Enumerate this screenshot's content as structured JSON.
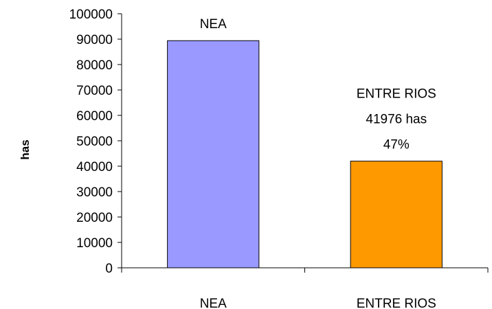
{
  "chart_data": {
    "type": "bar",
    "title": "",
    "xlabel": "",
    "ylabel": "has",
    "ylim": [
      0,
      100000
    ],
    "yticks": [
      0,
      10000,
      20000,
      30000,
      40000,
      50000,
      60000,
      70000,
      80000,
      90000,
      100000
    ],
    "categories": [
      "NEA",
      "ENTRE RIOS"
    ],
    "values": [
      89400,
      41976
    ],
    "colors": [
      "#9999ff",
      "#ff9900"
    ],
    "data_labels": [
      [
        "NEA"
      ],
      [
        "ENTRE RIOS",
        "41976 has",
        "47%"
      ]
    ],
    "legend": false,
    "grid": false
  }
}
